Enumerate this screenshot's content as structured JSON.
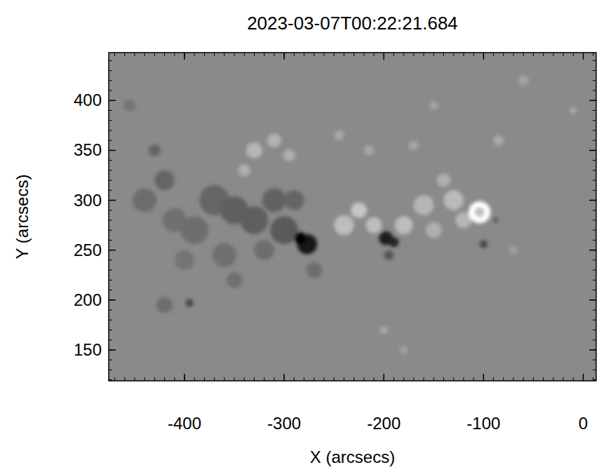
{
  "chart_data": {
    "type": "image",
    "title": "2023-03-07T00:22:21.684",
    "x_label": "X (arcsecs)",
    "y_label": "Y (arcsecs)",
    "xlim": [
      -476,
      13
    ],
    "ylim": [
      119,
      448
    ],
    "xticks": [
      -400,
      -300,
      -200,
      -100,
      0
    ],
    "yticks": [
      150,
      200,
      250,
      300,
      350,
      400
    ],
    "features": [
      {
        "x": -440,
        "y": 300,
        "radius": 12,
        "field": -400
      },
      {
        "x": -420,
        "y": 320,
        "radius": 10,
        "field": -500
      },
      {
        "x": -410,
        "y": 280,
        "radius": 12,
        "field": -350
      },
      {
        "x": -390,
        "y": 270,
        "radius": 14,
        "field": -400
      },
      {
        "x": -370,
        "y": 300,
        "radius": 15,
        "field": -500
      },
      {
        "x": -350,
        "y": 290,
        "radius": 14,
        "field": -600
      },
      {
        "x": -330,
        "y": 280,
        "radius": 14,
        "field": -600
      },
      {
        "x": -310,
        "y": 300,
        "radius": 12,
        "field": -550
      },
      {
        "x": -300,
        "y": 270,
        "radius": 14,
        "field": -650
      },
      {
        "x": -290,
        "y": 300,
        "radius": 10,
        "field": -500
      },
      {
        "x": -320,
        "y": 250,
        "radius": 10,
        "field": -400
      },
      {
        "x": -360,
        "y": 245,
        "radius": 12,
        "field": -350
      },
      {
        "x": -400,
        "y": 240,
        "radius": 10,
        "field": -300
      },
      {
        "x": -420,
        "y": 195,
        "radius": 8,
        "field": -400
      },
      {
        "x": -395,
        "y": 197,
        "radius": 4,
        "field": -900
      },
      {
        "x": -350,
        "y": 220,
        "radius": 8,
        "field": -350
      },
      {
        "x": -455,
        "y": 395,
        "radius": 6,
        "field": -300
      },
      {
        "x": -430,
        "y": 350,
        "radius": 6,
        "field": -500
      },
      {
        "x": -270,
        "y": 230,
        "radius": 8,
        "field": -400
      },
      {
        "x": -277,
        "y": 256,
        "radius": 10,
        "field": -1600
      },
      {
        "x": -284,
        "y": 262,
        "radius": 6,
        "field": -1800
      },
      {
        "x": -198,
        "y": 262,
        "radius": 7,
        "field": -1500
      },
      {
        "x": -190,
        "y": 258,
        "radius": 5,
        "field": -1400
      },
      {
        "x": -195,
        "y": 245,
        "radius": 5,
        "field": -700
      },
      {
        "x": -100,
        "y": 256,
        "radius": 4,
        "field": -900
      },
      {
        "x": -88,
        "y": 280,
        "radius": 3,
        "field": -600
      },
      {
        "x": -240,
        "y": 275,
        "radius": 10,
        "field": 700
      },
      {
        "x": -225,
        "y": 290,
        "radius": 8,
        "field": 800
      },
      {
        "x": -210,
        "y": 275,
        "radius": 8,
        "field": 700
      },
      {
        "x": -180,
        "y": 275,
        "radius": 9,
        "field": 700
      },
      {
        "x": -160,
        "y": 295,
        "radius": 10,
        "field": 600
      },
      {
        "x": -150,
        "y": 270,
        "radius": 8,
        "field": 500
      },
      {
        "x": -130,
        "y": 300,
        "radius": 10,
        "field": 650
      },
      {
        "x": -140,
        "y": 320,
        "radius": 7,
        "field": 500
      },
      {
        "x": -120,
        "y": 280,
        "radius": 8,
        "field": 600
      },
      {
        "x": -104,
        "y": 288,
        "radius": 11,
        "field": 1800
      },
      {
        "x": -104,
        "y": 288,
        "radius": 5,
        "field": 700
      },
      {
        "x": -330,
        "y": 350,
        "radius": 8,
        "field": 600
      },
      {
        "x": -310,
        "y": 360,
        "radius": 7,
        "field": 550
      },
      {
        "x": -295,
        "y": 345,
        "radius": 6,
        "field": 500
      },
      {
        "x": -340,
        "y": 330,
        "radius": 6,
        "field": 500
      },
      {
        "x": -245,
        "y": 365,
        "radius": 5,
        "field": 400
      },
      {
        "x": -215,
        "y": 350,
        "radius": 5,
        "field": 400
      },
      {
        "x": -170,
        "y": 355,
        "radius": 5,
        "field": 350
      },
      {
        "x": -85,
        "y": 360,
        "radius": 5,
        "field": 450
      },
      {
        "x": -150,
        "y": 395,
        "radius": 4,
        "field": 400
      },
      {
        "x": -60,
        "y": 420,
        "radius": 5,
        "field": 350
      },
      {
        "x": -10,
        "y": 390,
        "radius": 3,
        "field": 500
      },
      {
        "x": -70,
        "y": 250,
        "radius": 4,
        "field": 300
      },
      {
        "x": -200,
        "y": 170,
        "radius": 4,
        "field": 400
      },
      {
        "x": -180,
        "y": 150,
        "radius": 4,
        "field": 300
      }
    ]
  }
}
